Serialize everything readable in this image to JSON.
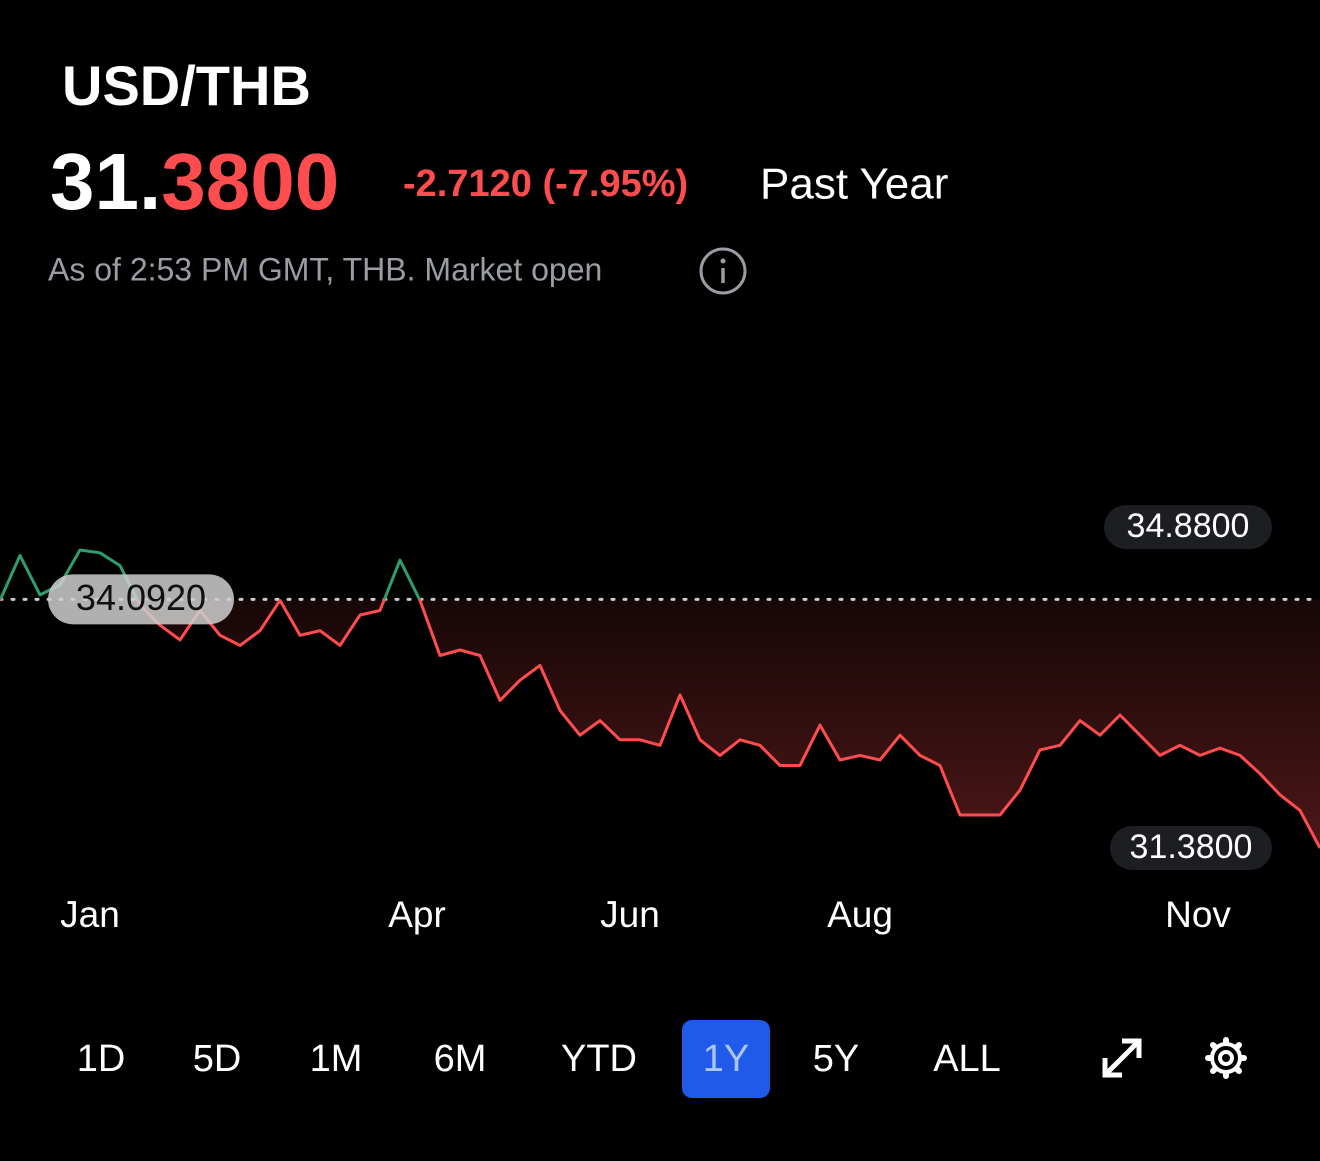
{
  "header": {
    "title": "USD/THB",
    "price_int": "31.",
    "price_dec": "3800",
    "change": "-2.7120 (-7.95%)",
    "period": "Past Year",
    "status": "As of 2:53 PM GMT, THB. Market open"
  },
  "chart_data": {
    "type": "line",
    "values": [
      34.08,
      34.57,
      34.14,
      34.25,
      34.63,
      34.6,
      34.46,
      34.03,
      33.81,
      33.65,
      33.97,
      33.7,
      33.59,
      33.75,
      34.08,
      33.7,
      33.75,
      33.59,
      33.92,
      33.97,
      34.52,
      34.08,
      33.48,
      33.54,
      33.48,
      32.99,
      33.21,
      33.37,
      32.88,
      32.61,
      32.77,
      32.56,
      32.56,
      32.5,
      33.05,
      32.56,
      32.39,
      32.56,
      32.5,
      32.28,
      32.28,
      32.72,
      32.34,
      32.39,
      32.34,
      32.61,
      32.39,
      32.28,
      31.74,
      31.74,
      31.74,
      32.01,
      32.45,
      32.5,
      32.77,
      32.61,
      32.83,
      32.61,
      32.39,
      32.5,
      32.39,
      32.47,
      32.39,
      32.19,
      31.96,
      31.79,
      31.38
    ],
    "ylim": [
      31.38,
      34.99
    ],
    "yticks": [
      {
        "value": 34.88,
        "label": "34.8800"
      },
      {
        "value": 31.38,
        "label": "31.3800"
      }
    ],
    "baseline": {
      "value": 34.092,
      "label": "34.0920"
    },
    "xticks": [
      {
        "value": 4.5,
        "label": "Jan"
      },
      {
        "value": 20.85,
        "label": "Apr"
      },
      {
        "value": 31.5,
        "label": "Jun"
      },
      {
        "value": 43,
        "label": "Aug"
      },
      {
        "value": 59.9,
        "label": "Nov"
      }
    ],
    "up_color": "#2e9e6e",
    "down_color": "#ff4d4f"
  },
  "ranges": [
    "1D",
    "5D",
    "1M",
    "6M",
    "YTD",
    "1Y",
    "5Y",
    "ALL"
  ],
  "selected_range": 5
}
